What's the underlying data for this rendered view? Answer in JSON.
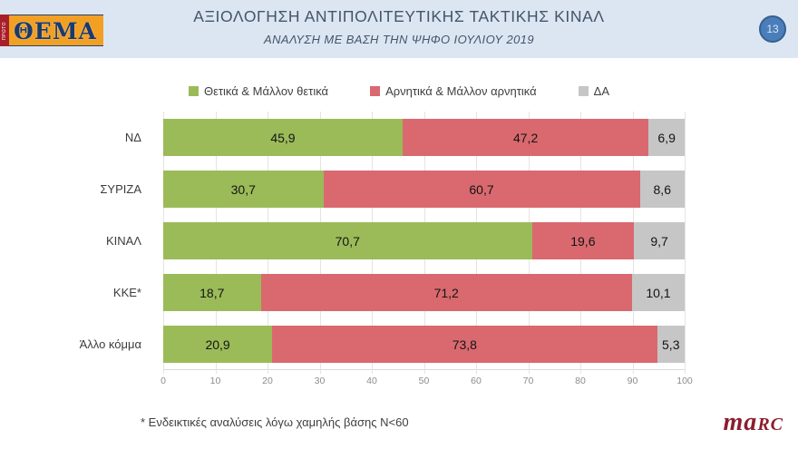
{
  "header": {
    "logo": {
      "strip_text": "ΠΡΩΤΟ",
      "main_text": "ΘΕΜΑ"
    },
    "title": "ΑΞΙΟΛΟΓΗΣΗ ΑΝΤΙΠΟΛΙΤΕΥΤΙΚΗΣ ΤΑΚΤΙΚΗΣ ΚΙΝΑΛ",
    "subtitle": "ΑΝΑΛΥΣΗ ΜΕ ΒΑΣΗ ΤΗΝ ΨΗΦΟ ΙΟΥΛΙΟΥ 2019",
    "page_number": "13"
  },
  "chart_data": {
    "type": "bar",
    "orientation": "horizontal",
    "stacked": true,
    "categories": [
      "ΝΔ",
      "ΣΥΡΙΖΑ",
      "ΚΙΝΑΛ",
      "ΚΚΕ*",
      "Άλλο κόμμα"
    ],
    "series": [
      {
        "name": "Θετικά & Μάλλον θετικά",
        "color": "#9bbb59",
        "values": [
          45.9,
          30.7,
          70.7,
          18.7,
          20.9
        ],
        "labels": [
          "45,9",
          "30,7",
          "70,7",
          "18,7",
          "20,9"
        ]
      },
      {
        "name": "Αρνητικά & Μάλλον αρνητικά",
        "color": "#d9696f",
        "values": [
          47.2,
          60.7,
          19.6,
          71.2,
          73.8
        ],
        "labels": [
          "47,2",
          "60,7",
          "19,6",
          "71,2",
          "73,8"
        ]
      },
      {
        "name": "ΔΑ",
        "color": "#c6c6c6",
        "values": [
          6.9,
          8.6,
          9.7,
          10.1,
          5.3
        ],
        "labels": [
          "6,9",
          "8,6",
          "9,7",
          "10,1",
          "5,3"
        ]
      }
    ],
    "x_ticks": [
      0,
      10,
      20,
      30,
      40,
      50,
      60,
      70,
      80,
      90,
      100
    ],
    "xlim": [
      0,
      100
    ],
    "legend_position": "top",
    "grid": true
  },
  "footnote": "* Ενδεικτικές αναλύσεις λόγω χαμηλής βάσης N<60",
  "brand": {
    "name_prefix": "ma",
    "name_suffix": "rc",
    "color": "#8b1e2d"
  }
}
